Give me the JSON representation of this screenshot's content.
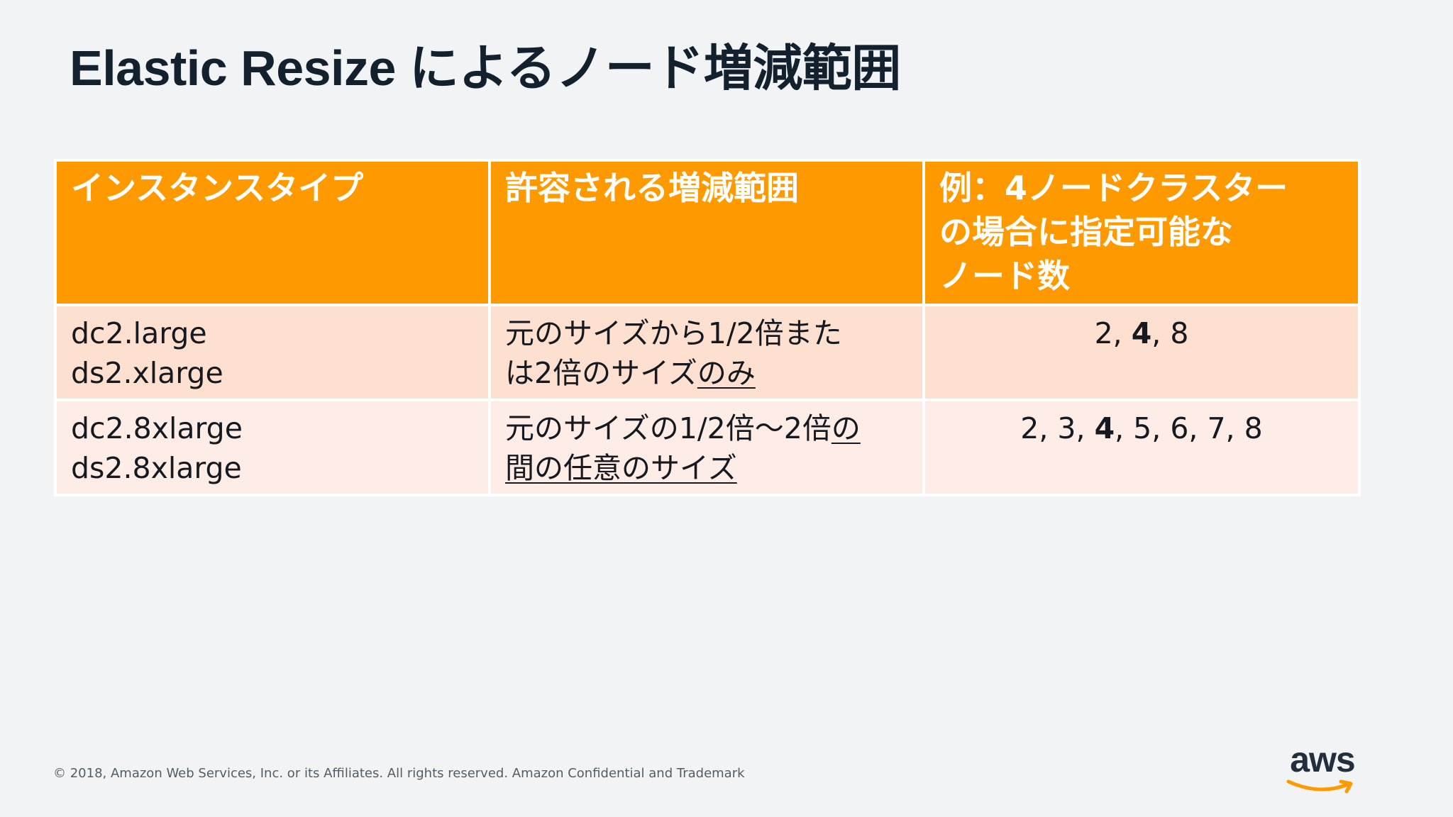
{
  "slide": {
    "title": "Elastic Resize によるノード増減範囲",
    "footer": "© 2018, Amazon Web Services, Inc. or its Affiliates. All rights reserved. Amazon Confidential and Trademark",
    "logo_text": "aws",
    "colors": {
      "header_bg": "#ff9900",
      "row1_bg": "#fde0d0",
      "row2_bg": "#feede6",
      "background": "#f2f3f4",
      "title": "#13202e",
      "logo_smile": "#ff9900"
    }
  },
  "table": {
    "headers": {
      "col1": "インスタンスタイプ",
      "col2": "許容される増減範囲",
      "col3_line1": "例：4ノードクラスター",
      "col3_line2": "の場合に指定可能な",
      "col3_line3": "ノード数"
    },
    "rows": [
      {
        "types": [
          "dc2.large",
          "ds2.xlarge"
        ],
        "range_line1": "元のサイズから1/2倍また",
        "range_line2_plain": "は2倍のサイズ",
        "range_line2_underlined": "のみ",
        "nodes_before": "2, ",
        "nodes_bold": "4",
        "nodes_after": ", 8"
      },
      {
        "types": [
          "dc2.8xlarge",
          "ds2.8xlarge"
        ],
        "range_line1_plain": "元のサイズの1/2倍〜2倍",
        "range_line1_underlined": "の",
        "range_line2_underlined": "間の任意のサイズ",
        "nodes_before": "2, 3, ",
        "nodes_bold": "4",
        "nodes_after": ", 5, 6, 7, 8"
      }
    ]
  }
}
